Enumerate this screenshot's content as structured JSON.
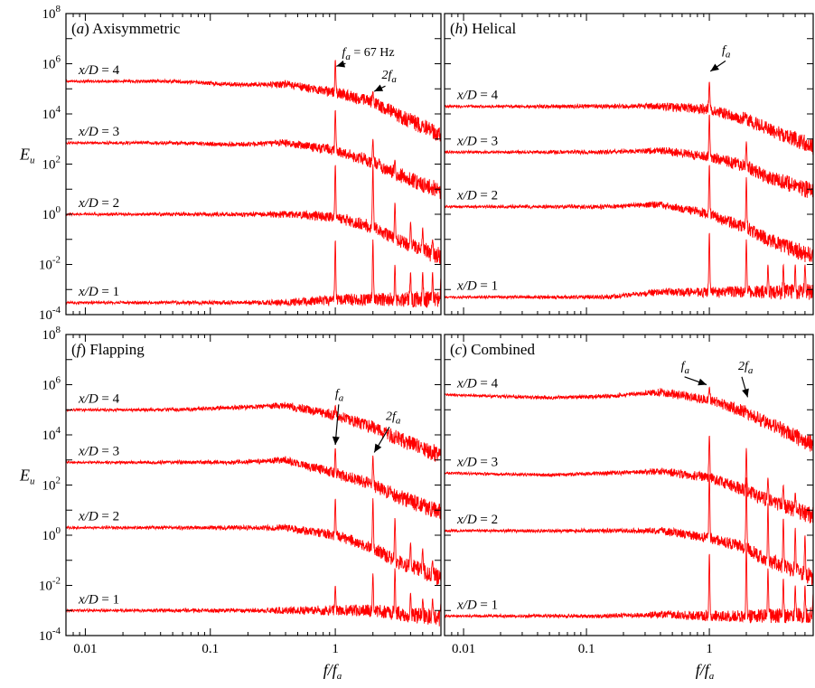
{
  "chart_data": [
    {
      "type": "line",
      "title": "(a) Axisymmetric",
      "xscale": "log",
      "yscale": "log",
      "xlim": [
        0.007,
        7
      ],
      "ylim": [
        0.0001,
        100000000
      ],
      "ylabel": "E_u",
      "series": [
        {
          "name": "x/D = 4",
          "x": [
            0.007,
            0.05,
            0.15,
            0.4,
            1,
            2,
            3,
            7
          ],
          "y": [
            200000,
            200000,
            150000,
            150000,
            70000,
            30000,
            10000,
            1500
          ]
        },
        {
          "name": "x/D = 3",
          "x": [
            0.007,
            0.05,
            0.15,
            0.4,
            1,
            2,
            3,
            7
          ],
          "y": [
            700,
            700,
            600,
            700,
            350,
            120,
            45,
            8
          ]
        },
        {
          "name": "x/D = 2",
          "x": [
            0.007,
            0.05,
            0.15,
            0.4,
            1,
            2,
            3,
            7
          ],
          "y": [
            1,
            1,
            1,
            1,
            0.8,
            0.3,
            0.1,
            0.02
          ]
        },
        {
          "name": "x/D = 1",
          "x": [
            0.007,
            0.05,
            0.15,
            0.4,
            1,
            2,
            3,
            7
          ],
          "y": [
            0.0003,
            0.0003,
            0.0003,
            0.0003,
            0.0004,
            0.0004,
            0.0004,
            0.0004
          ]
        }
      ],
      "peaks": [
        {
          "x/D": 4,
          "x": [
            1,
            2
          ],
          "y": [
            1500000,
            80000
          ]
        },
        {
          "x/D": 3,
          "x": [
            1,
            2,
            3
          ],
          "y": [
            15000,
            1000,
            150
          ]
        },
        {
          "x/D": 2,
          "x": [
            1,
            2,
            3,
            4,
            5,
            6
          ],
          "y": [
            100,
            100,
            3,
            0.5,
            0.3,
            0.1
          ]
        },
        {
          "x/D": 1,
          "x": [
            1,
            2,
            3,
            4,
            5,
            6,
            7
          ],
          "y": [
            0.1,
            0.1,
            0.01,
            0.005,
            0.005,
            0.005,
            0.003
          ]
        }
      ],
      "annotations": [
        {
          "text_main": "f",
          "text_sub": "a",
          "text_extra": " = 67 Hz",
          "x": 1
        },
        {
          "text_main": "2f",
          "text_sub": "a",
          "text_extra": "",
          "x": 2
        }
      ],
      "color": "#ff0000"
    },
    {
      "type": "line",
      "title": "(h) Helical",
      "xscale": "log",
      "yscale": "log",
      "xlim": [
        0.007,
        7
      ],
      "ylim": [
        0.0001,
        100000000
      ],
      "series": [
        {
          "name": "x/D = 4",
          "x": [
            0.007,
            0.05,
            0.15,
            0.4,
            1,
            2,
            3,
            7
          ],
          "y": [
            20000,
            20000,
            20000,
            20000,
            15000,
            6000,
            2500,
            500
          ]
        },
        {
          "name": "x/D = 3",
          "x": [
            0.007,
            0.05,
            0.15,
            0.4,
            1,
            2,
            3,
            7
          ],
          "y": [
            300,
            300,
            300,
            350,
            200,
            80,
            30,
            8
          ]
        },
        {
          "name": "x/D = 2",
          "x": [
            0.007,
            0.05,
            0.15,
            0.4,
            1,
            2,
            3,
            7
          ],
          "y": [
            2,
            2,
            2,
            2.5,
            1,
            0.3,
            0.1,
            0.02
          ]
        },
        {
          "name": "x/D = 1",
          "x": [
            0.007,
            0.05,
            0.15,
            0.4,
            1,
            2,
            3,
            7
          ],
          "y": [
            0.0005,
            0.0005,
            0.0005,
            0.0008,
            0.0008,
            0.0008,
            0.0008,
            0.0008
          ]
        }
      ],
      "peaks": [
        {
          "x/D": 4,
          "x": [
            1
          ],
          "y": [
            200000
          ]
        },
        {
          "x/D": 3,
          "x": [
            1,
            2
          ],
          "y": [
            10000,
            800
          ]
        },
        {
          "x/D": 2,
          "x": [
            1,
            2
          ],
          "y": [
            100,
            30
          ]
        },
        {
          "x/D": 1,
          "x": [
            1,
            2,
            3,
            4,
            5,
            6
          ],
          "y": [
            0.2,
            0.1,
            0.01,
            0.01,
            0.01,
            0.01
          ]
        }
      ],
      "annotations": [
        {
          "text_main": "f",
          "text_sub": "a",
          "text_extra": "",
          "x": 1
        }
      ],
      "color": "#ff0000"
    },
    {
      "type": "line",
      "title": "(f) Flapping",
      "xscale": "log",
      "yscale": "log",
      "xlim": [
        0.007,
        7
      ],
      "ylim": [
        0.0001,
        100000000
      ],
      "ylabel": "E_u",
      "xlabel": "f/f_a",
      "xticks": [
        0.01,
        0.1,
        1
      ],
      "series": [
        {
          "name": "x/D = 4",
          "x": [
            0.007,
            0.05,
            0.15,
            0.4,
            1,
            2,
            3,
            7
          ],
          "y": [
            100000,
            100000,
            120000,
            150000,
            60000,
            20000,
            8000,
            1500
          ]
        },
        {
          "name": "x/D = 3",
          "x": [
            0.007,
            0.05,
            0.15,
            0.4,
            1,
            2,
            3,
            7
          ],
          "y": [
            800,
            800,
            800,
            1000,
            300,
            100,
            40,
            8
          ]
        },
        {
          "name": "x/D = 2",
          "x": [
            0.007,
            0.05,
            0.15,
            0.4,
            1,
            2,
            3,
            7
          ],
          "y": [
            2,
            2,
            2,
            2,
            1,
            0.3,
            0.1,
            0.02
          ]
        },
        {
          "name": "x/D = 1",
          "x": [
            0.007,
            0.05,
            0.15,
            0.4,
            1,
            2,
            3,
            7
          ],
          "y": [
            0.001,
            0.001,
            0.001,
            0.001,
            0.001,
            0.001,
            0.0008,
            0.0005
          ]
        }
      ],
      "peaks": [
        {
          "x/D": 4,
          "x": [
            1
          ],
          "y": [
            150000
          ]
        },
        {
          "x/D": 3,
          "x": [
            1,
            2
          ],
          "y": [
            3000,
            1500
          ]
        },
        {
          "x/D": 2,
          "x": [
            1,
            2,
            3,
            4,
            5,
            6
          ],
          "y": [
            30,
            30,
            5,
            0.5,
            0.3,
            0.1
          ]
        },
        {
          "x/D": 1,
          "x": [
            1,
            2,
            3,
            4,
            5,
            6,
            7
          ],
          "y": [
            0.01,
            0.03,
            0.05,
            0.005,
            0.003,
            0.003,
            0.002
          ]
        }
      ],
      "annotations": [
        {
          "text_main": "f",
          "text_sub": "a",
          "text_extra": "",
          "x": 1
        },
        {
          "text_main": "2f",
          "text_sub": "a",
          "text_extra": "",
          "x": 2
        }
      ],
      "color": "#ff0000"
    },
    {
      "type": "line",
      "title": "(c) Combined",
      "xscale": "log",
      "yscale": "log",
      "xlim": [
        0.007,
        7
      ],
      "ylim": [
        0.0001,
        100000000
      ],
      "xlabel": "f/f_a",
      "xticks": [
        0.01,
        0.1,
        1
      ],
      "series": [
        {
          "name": "x/D = 4",
          "x": [
            0.007,
            0.05,
            0.15,
            0.4,
            1,
            2,
            3,
            7
          ],
          "y": [
            400000,
            300000,
            350000,
            500000,
            250000,
            80000,
            30000,
            4000
          ]
        },
        {
          "name": "x/D = 3",
          "x": [
            0.007,
            0.05,
            0.15,
            0.4,
            1,
            2,
            3,
            7
          ],
          "y": [
            300,
            250,
            300,
            350,
            200,
            60,
            25,
            6
          ]
        },
        {
          "name": "x/D = 2",
          "x": [
            0.007,
            0.05,
            0.15,
            0.4,
            1,
            2,
            3,
            7
          ],
          "y": [
            1.5,
            1.5,
            1.5,
            1.5,
            0.8,
            0.3,
            0.1,
            0.02
          ]
        },
        {
          "name": "x/D = 1",
          "x": [
            0.007,
            0.05,
            0.15,
            0.4,
            1,
            2,
            3,
            7
          ],
          "y": [
            0.0006,
            0.0006,
            0.0006,
            0.0007,
            0.0006,
            0.0006,
            0.0006,
            0.0006
          ]
        }
      ],
      "peaks": [
        {
          "x/D": 4,
          "x": [
            1,
            2
          ],
          "y": [
            800000,
            100000
          ]
        },
        {
          "x/D": 3,
          "x": [
            1,
            2,
            3,
            4,
            5
          ],
          "y": [
            10000,
            3000,
            200,
            100,
            50
          ]
        },
        {
          "x/D": 2,
          "x": [
            1,
            2,
            3,
            4,
            5,
            6
          ],
          "y": [
            300,
            200,
            20,
            5,
            2,
            1
          ]
        },
        {
          "x/D": 1,
          "x": [
            1,
            2,
            3,
            4,
            5,
            6,
            7
          ],
          "y": [
            0.2,
            0.5,
            0.05,
            0.02,
            0.01,
            0.01,
            0.005
          ]
        }
      ],
      "annotations": [
        {
          "text_main": "f",
          "text_sub": "a",
          "text_extra": "",
          "x": 1
        },
        {
          "text_main": "2f",
          "text_sub": "a",
          "text_extra": "",
          "x": 2
        }
      ],
      "color": "#ff0000"
    }
  ]
}
